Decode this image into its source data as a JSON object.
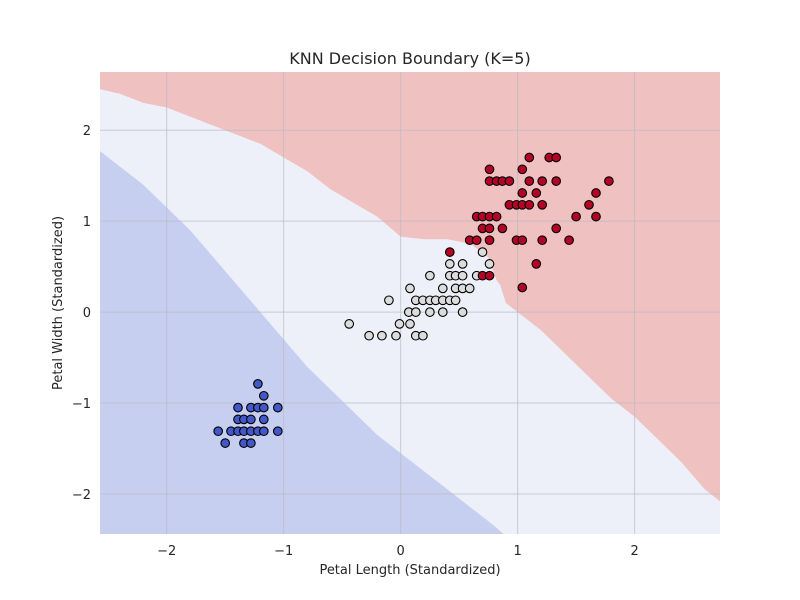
{
  "chart_data": {
    "type": "scatter",
    "title": "KNN Decision Boundary (K=5)",
    "xlabel": "Petal Length (Standardized)",
    "ylabel": "Petal Width (Standardized)",
    "xlim": [
      -2.57,
      2.73
    ],
    "ylim": [
      -2.44,
      2.64
    ],
    "xticks": [
      -2,
      -1,
      0,
      1,
      2
    ],
    "yticks": [
      -2,
      -1,
      0,
      1,
      2
    ],
    "xtick_labels": [
      "−2",
      "−1",
      "0",
      "1",
      "2"
    ],
    "ytick_labels": [
      "−2",
      "−1",
      "0",
      "1",
      "2"
    ],
    "grid": true,
    "colors": {
      "region_low": "#c7cff1",
      "region_mid": "#edf0f8",
      "region_high": "#f0c1c1",
      "point_low": "#4257c8",
      "point_mid": "#dcdcdc",
      "point_high": "#b40426",
      "point_edge": "#000000",
      "grid": "#b9b9c4"
    },
    "decision_regions": [
      {
        "class": 0,
        "polygon": [
          [
            -2.57,
            1.77
          ],
          [
            -2.4,
            1.6
          ],
          [
            -2.2,
            1.4
          ],
          [
            -2.0,
            1.15
          ],
          [
            -1.8,
            0.9
          ],
          [
            -1.6,
            0.6
          ],
          [
            -1.4,
            0.3
          ],
          [
            -1.2,
            0.0
          ],
          [
            -1.0,
            -0.3
          ],
          [
            -0.8,
            -0.6
          ],
          [
            -0.6,
            -0.85
          ],
          [
            -0.4,
            -1.1
          ],
          [
            -0.2,
            -1.35
          ],
          [
            0.0,
            -1.55
          ],
          [
            0.2,
            -1.75
          ],
          [
            0.4,
            -1.95
          ],
          [
            0.6,
            -2.15
          ],
          [
            0.8,
            -2.35
          ],
          [
            0.88,
            -2.44
          ],
          [
            -2.57,
            -2.44
          ]
        ]
      },
      {
        "class": 2,
        "polygon": [
          [
            -2.57,
            2.45
          ],
          [
            -2.4,
            2.4
          ],
          [
            -2.2,
            2.3
          ],
          [
            -2.0,
            2.25
          ],
          [
            -1.8,
            2.15
          ],
          [
            -1.6,
            2.05
          ],
          [
            -1.4,
            1.95
          ],
          [
            -1.2,
            1.85
          ],
          [
            -1.0,
            1.7
          ],
          [
            -0.8,
            1.55
          ],
          [
            -0.6,
            1.35
          ],
          [
            -0.4,
            1.2
          ],
          [
            -0.2,
            1.05
          ],
          [
            0.0,
            0.83
          ],
          [
            0.2,
            0.8
          ],
          [
            0.4,
            0.8
          ],
          [
            0.6,
            0.75
          ],
          [
            0.75,
            0.6
          ],
          [
            0.82,
            0.35
          ],
          [
            0.85,
            0.3
          ],
          [
            0.9,
            0.1
          ],
          [
            1.0,
            0.0
          ],
          [
            1.2,
            -0.2
          ],
          [
            1.4,
            -0.45
          ],
          [
            1.6,
            -0.7
          ],
          [
            1.8,
            -0.95
          ],
          [
            2.0,
            -1.15
          ],
          [
            2.2,
            -1.4
          ],
          [
            2.4,
            -1.65
          ],
          [
            2.6,
            -1.95
          ],
          [
            2.73,
            -2.08
          ],
          [
            2.73,
            2.64
          ],
          [
            -2.57,
            2.64
          ]
        ]
      }
    ],
    "series": [
      {
        "class": 0,
        "points": [
          [
            -1.22,
            -0.79
          ],
          [
            -1.17,
            -0.92
          ],
          [
            -1.39,
            -1.05
          ],
          [
            -1.28,
            -1.05
          ],
          [
            -1.22,
            -1.05
          ],
          [
            -1.17,
            -1.05
          ],
          [
            -1.05,
            -1.05
          ],
          [
            -1.39,
            -1.18
          ],
          [
            -1.34,
            -1.18
          ],
          [
            -1.28,
            -1.18
          ],
          [
            -1.17,
            -1.18
          ],
          [
            -1.56,
            -1.31
          ],
          [
            -1.45,
            -1.31
          ],
          [
            -1.39,
            -1.31
          ],
          [
            -1.34,
            -1.31
          ],
          [
            -1.28,
            -1.31
          ],
          [
            -1.22,
            -1.31
          ],
          [
            -1.17,
            -1.31
          ],
          [
            -1.05,
            -1.31
          ],
          [
            -1.5,
            -1.44
          ],
          [
            -1.34,
            -1.44
          ],
          [
            -1.28,
            -1.44
          ]
        ]
      },
      {
        "class": 1,
        "points": [
          [
            -0.44,
            -0.13
          ],
          [
            -0.27,
            -0.26
          ],
          [
            -0.16,
            -0.26
          ],
          [
            -0.04,
            -0.26
          ],
          [
            0.13,
            -0.26
          ],
          [
            0.19,
            -0.26
          ],
          [
            -0.1,
            0.13
          ],
          [
            -0.01,
            -0.13
          ],
          [
            0.08,
            -0.13
          ],
          [
            0.07,
            0.0
          ],
          [
            0.13,
            0.0
          ],
          [
            0.25,
            0.0
          ],
          [
            0.36,
            0.0
          ],
          [
            0.53,
            0.0
          ],
          [
            0.13,
            0.13
          ],
          [
            0.19,
            0.13
          ],
          [
            0.25,
            0.13
          ],
          [
            0.3,
            0.13
          ],
          [
            0.36,
            0.13
          ],
          [
            0.42,
            0.13
          ],
          [
            0.47,
            0.13
          ],
          [
            0.08,
            0.26
          ],
          [
            0.36,
            0.26
          ],
          [
            0.47,
            0.26
          ],
          [
            0.53,
            0.26
          ],
          [
            0.59,
            0.26
          ],
          [
            0.25,
            0.4
          ],
          [
            0.42,
            0.4
          ],
          [
            0.47,
            0.4
          ],
          [
            0.53,
            0.4
          ],
          [
            0.65,
            0.4
          ],
          [
            0.42,
            0.53
          ],
          [
            0.53,
            0.53
          ],
          [
            0.76,
            0.53
          ],
          [
            0.7,
            0.66
          ]
        ]
      },
      {
        "class": 2,
        "points": [
          [
            1.04,
            0.27
          ],
          [
            0.7,
            0.4
          ],
          [
            0.76,
            0.4
          ],
          [
            1.16,
            0.53
          ],
          [
            0.42,
            0.66
          ],
          [
            0.59,
            0.79
          ],
          [
            0.65,
            0.79
          ],
          [
            0.76,
            0.79
          ],
          [
            0.99,
            0.79
          ],
          [
            1.04,
            0.79
          ],
          [
            1.21,
            0.79
          ],
          [
            1.44,
            0.79
          ],
          [
            0.7,
            0.92
          ],
          [
            0.76,
            0.92
          ],
          [
            0.87,
            0.92
          ],
          [
            1.33,
            0.92
          ],
          [
            0.65,
            1.05
          ],
          [
            0.7,
            1.05
          ],
          [
            0.76,
            1.05
          ],
          [
            0.82,
            1.05
          ],
          [
            1.5,
            1.05
          ],
          [
            1.67,
            1.05
          ],
          [
            0.93,
            1.18
          ],
          [
            0.99,
            1.18
          ],
          [
            1.04,
            1.18
          ],
          [
            1.1,
            1.18
          ],
          [
            1.21,
            1.18
          ],
          [
            1.61,
            1.18
          ],
          [
            1.04,
            1.31
          ],
          [
            1.16,
            1.31
          ],
          [
            1.67,
            1.31
          ],
          [
            0.76,
            1.44
          ],
          [
            0.82,
            1.44
          ],
          [
            0.87,
            1.44
          ],
          [
            0.93,
            1.44
          ],
          [
            1.1,
            1.44
          ],
          [
            1.21,
            1.44
          ],
          [
            1.33,
            1.44
          ],
          [
            1.78,
            1.44
          ],
          [
            0.76,
            1.57
          ],
          [
            1.04,
            1.57
          ],
          [
            1.1,
            1.7
          ],
          [
            1.27,
            1.7
          ],
          [
            1.33,
            1.7
          ]
        ]
      }
    ]
  }
}
